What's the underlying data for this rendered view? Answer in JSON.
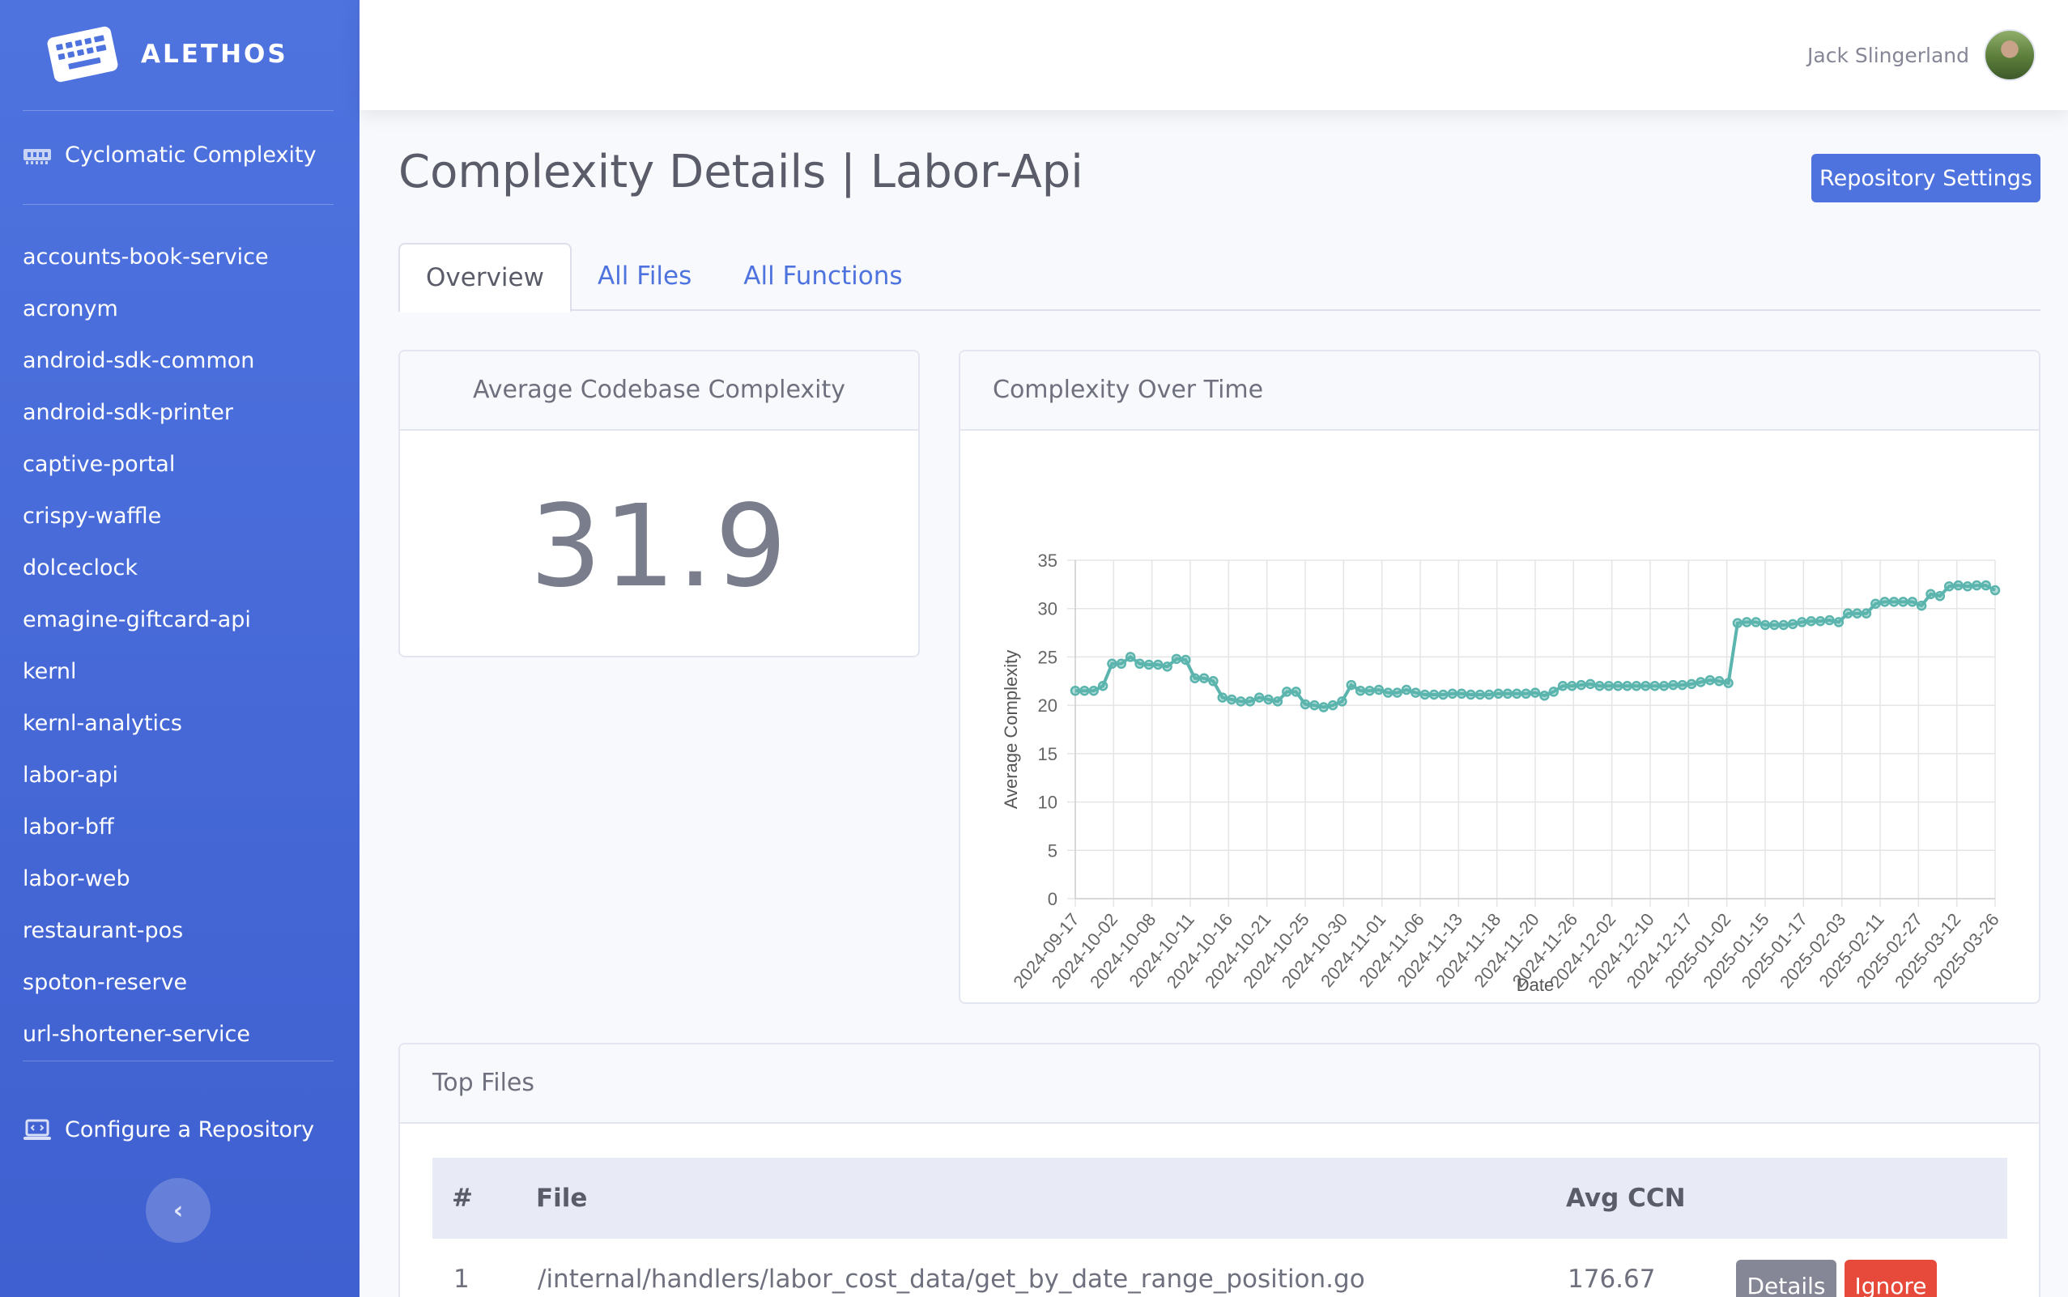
{
  "brand": {
    "name": "ALETHOS",
    "icon": "keyboard-icon"
  },
  "sidebar": {
    "main_item": {
      "label": "Cyclomatic Complexity",
      "icon": "memory-icon"
    },
    "repos": [
      "accounts-book-service",
      "acronym",
      "android-sdk-common",
      "android-sdk-printer",
      "captive-portal",
      "crispy-waffle",
      "dolceclock",
      "emagine-giftcard-api",
      "kernl",
      "kernl-analytics",
      "labor-api",
      "labor-bff",
      "labor-web",
      "restaurant-pos",
      "spoton-reserve",
      "url-shortener-service"
    ],
    "configure": {
      "label": "Configure a Repository",
      "icon": "laptop-code-icon"
    },
    "collapse_icon": "chevron-left-icon"
  },
  "topbar": {
    "user_name": "Jack Slingerland"
  },
  "page": {
    "title": "Complexity Details | Labor-Api",
    "settings_button": "Repository Settings",
    "tabs": [
      "Overview",
      "All Files",
      "All Functions"
    ],
    "active_tab": 0
  },
  "avg_card": {
    "title": "Average Codebase Complexity",
    "value": "31.9"
  },
  "chart_card": {
    "title": "Complexity Over Time"
  },
  "chart_data": {
    "type": "line",
    "title": "",
    "xlabel": "Date",
    "ylabel": "Average Complexity",
    "ylim": [
      0,
      35
    ],
    "yticks": [
      0,
      5,
      10,
      15,
      20,
      25,
      30,
      35
    ],
    "grid": true,
    "line_color": "#5bb5ae",
    "tick_labels": [
      "2024-09-17",
      "2024-10-02",
      "2024-10-08",
      "2024-10-11",
      "2024-10-16",
      "2024-10-21",
      "2024-10-25",
      "2024-10-30",
      "2024-11-01",
      "2024-11-06",
      "2024-11-13",
      "2024-11-18",
      "2024-11-20",
      "2024-11-26",
      "2024-12-02",
      "2024-12-10",
      "2024-12-17",
      "2025-01-02",
      "2025-01-15",
      "2025-01-17",
      "2025-02-03",
      "2025-02-11",
      "2025-02-27",
      "2025-03-12",
      "2025-03-26"
    ],
    "values": [
      21.5,
      21.5,
      21.5,
      22,
      24.3,
      24.3,
      25,
      24.3,
      24.2,
      24.2,
      24,
      24.8,
      24.7,
      22.8,
      22.8,
      22.5,
      20.8,
      20.6,
      20.4,
      20.4,
      20.8,
      20.6,
      20.4,
      21.4,
      21.4,
      20.1,
      20,
      19.8,
      20,
      20.4,
      22.1,
      21.5,
      21.5,
      21.6,
      21.3,
      21.3,
      21.6,
      21.3,
      21.1,
      21.1,
      21.1,
      21.2,
      21.2,
      21.1,
      21.1,
      21.1,
      21.2,
      21.2,
      21.2,
      21.2,
      21.3,
      21,
      21.4,
      22,
      22,
      22.1,
      22.2,
      22,
      22,
      22,
      22,
      22,
      22,
      22,
      22,
      22.1,
      22.1,
      22.2,
      22.4,
      22.6,
      22.5,
      22.3,
      28.5,
      28.6,
      28.6,
      28.3,
      28.3,
      28.3,
      28.4,
      28.6,
      28.7,
      28.7,
      28.8,
      28.6,
      29.5,
      29.5,
      29.5,
      30.5,
      30.7,
      30.7,
      30.7,
      30.7,
      30.3,
      31.5,
      31.3,
      32.3,
      32.4,
      32.3,
      32.4,
      32.4,
      31.9
    ]
  },
  "top_files": {
    "title": "Top Files",
    "columns": [
      "#",
      "File",
      "Avg CCN"
    ],
    "rows": [
      {
        "rank": "1",
        "file": "/internal/handlers/labor_cost_data/get_by_date_range_position.go",
        "ccn": "176.67",
        "details_label": "Details",
        "ignore_label": "Ignore"
      }
    ]
  }
}
